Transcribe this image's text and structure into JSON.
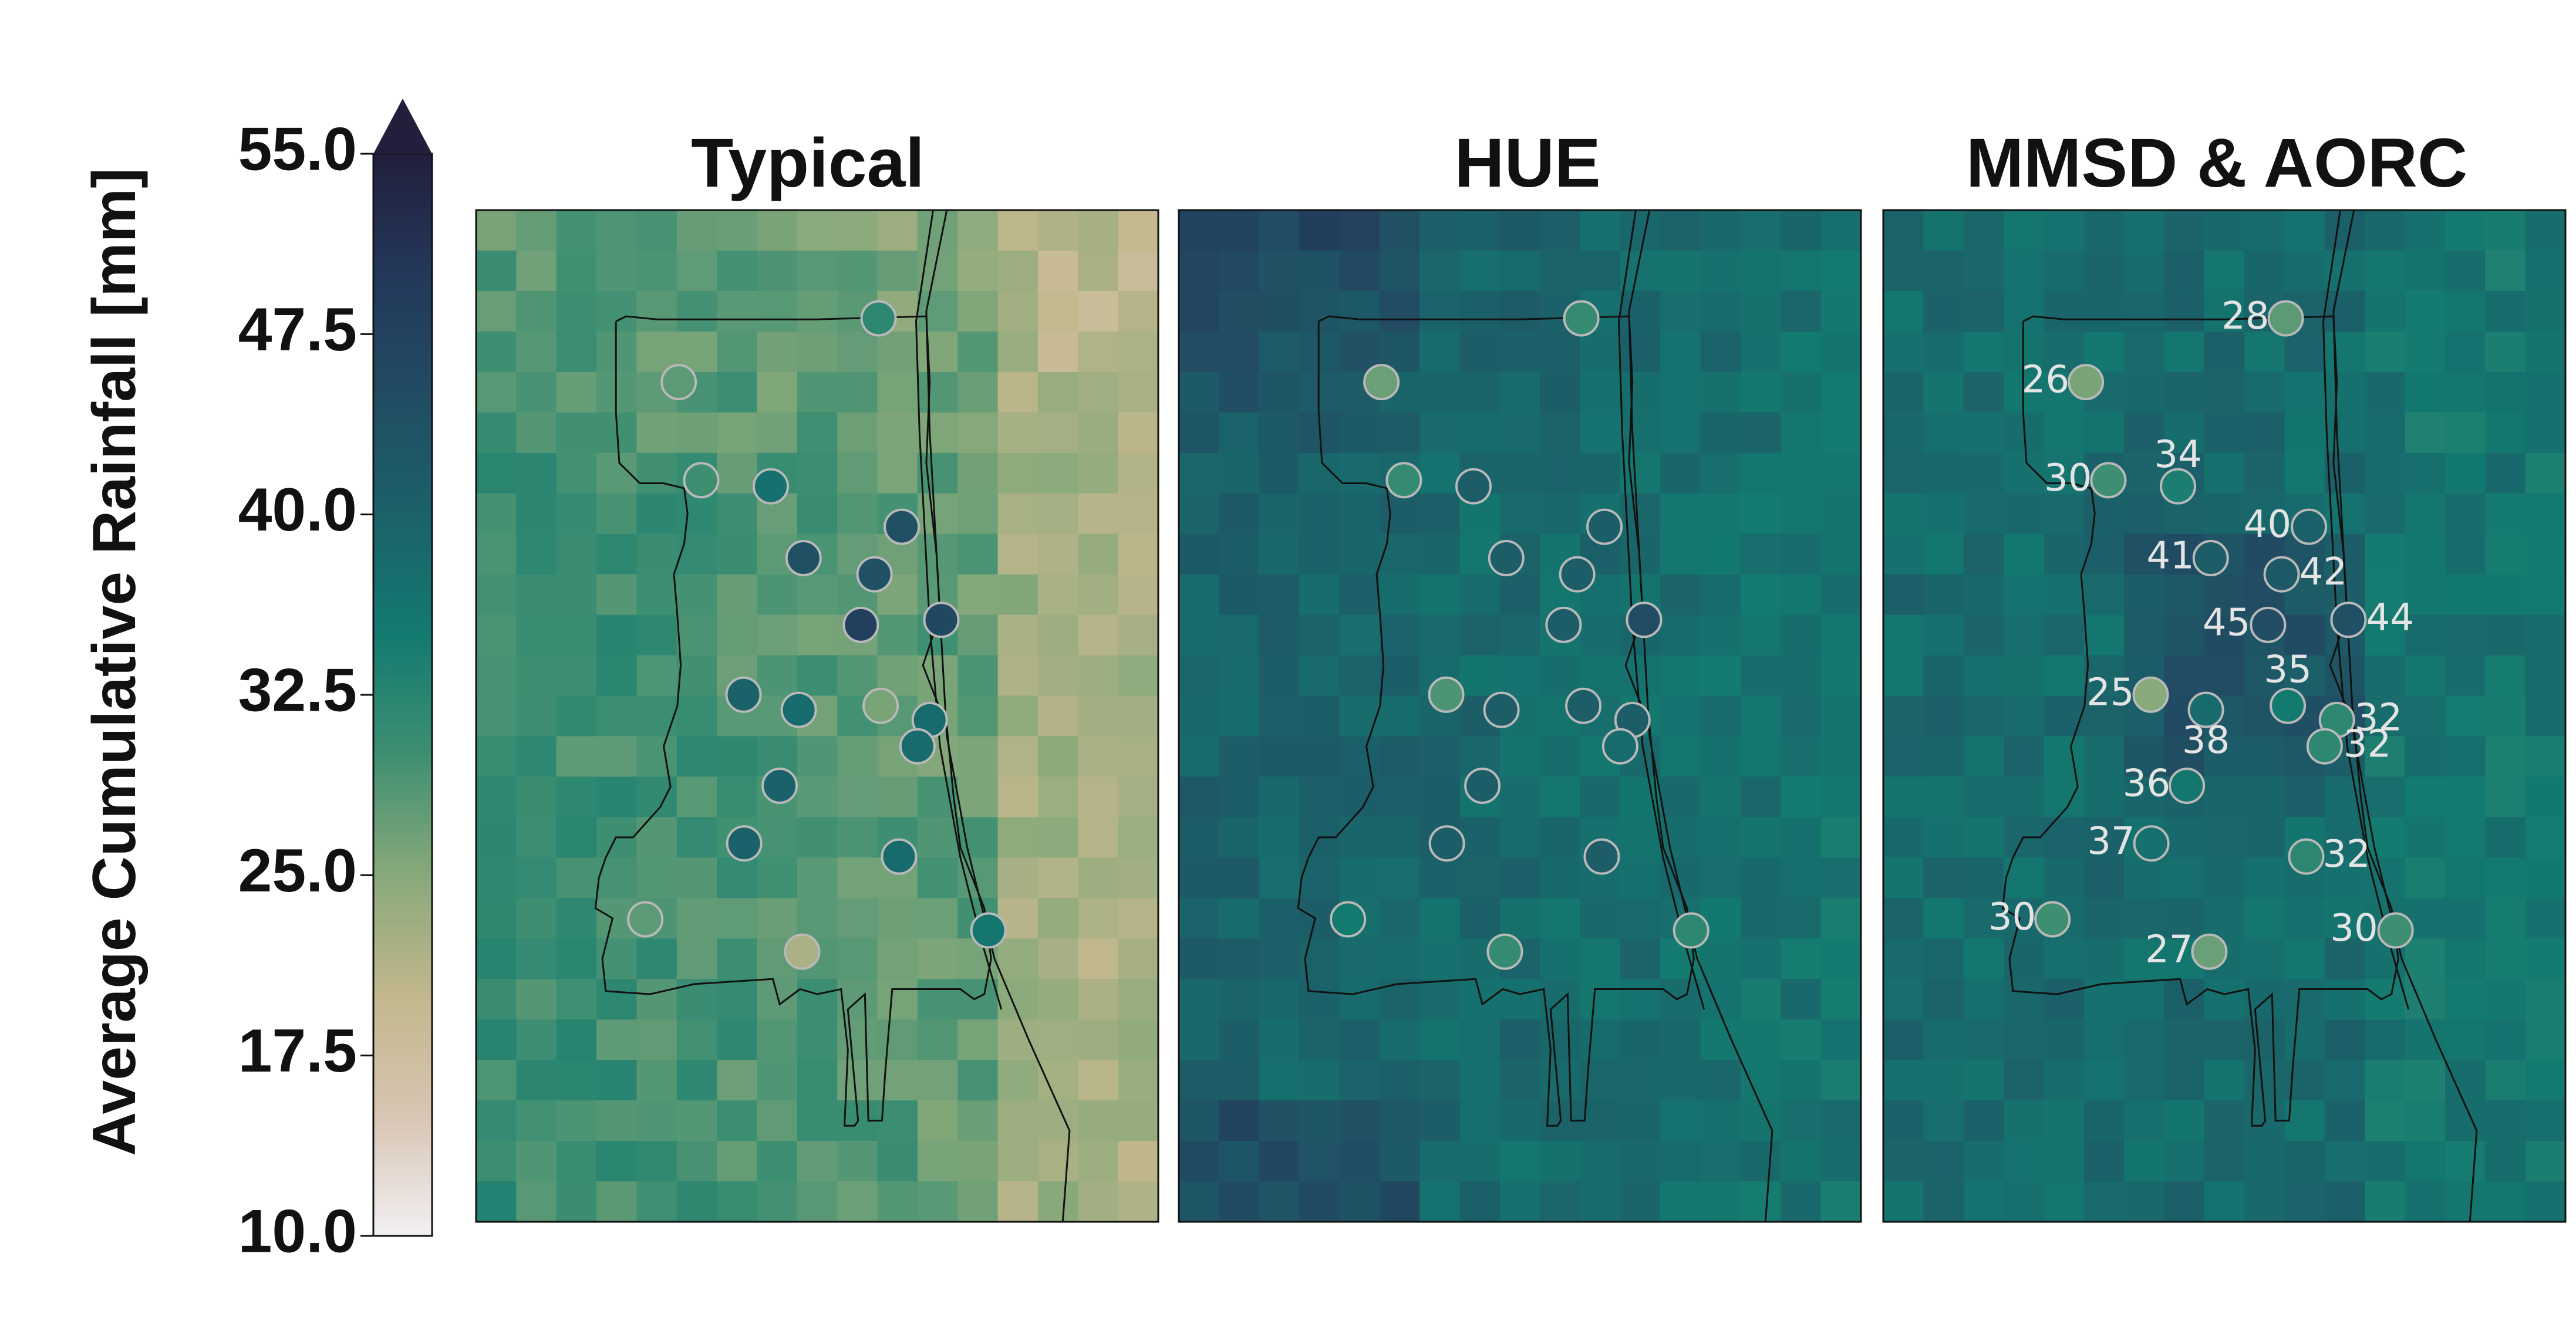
{
  "chart_data": {
    "type": "heatmap",
    "colorbar": {
      "label": "Average Cumulative Rainfall  [mm]",
      "min": 10.0,
      "max": 55.0,
      "extend": "max",
      "ticks": [
        "10.0",
        "17.5",
        "25.0",
        "32.5",
        "40.0",
        "47.5",
        "55.0"
      ],
      "colormap": [
        "#f2f0f3",
        "#d8c5b3",
        "#c2b78c",
        "#88a97a",
        "#3e8f72",
        "#137a70",
        "#1b6169",
        "#214c63",
        "#23385a",
        "#221f3d"
      ]
    },
    "panels": [
      {
        "title": "Typical",
        "field_base": 31,
        "show_labels": false,
        "stations": [
          {
            "id": "s01",
            "value": 32
          },
          {
            "id": "s02",
            "value": 28
          },
          {
            "id": "s03",
            "value": 30
          },
          {
            "id": "s04",
            "value": 37
          },
          {
            "id": "s05",
            "value": 44
          },
          {
            "id": "s06",
            "value": 44
          },
          {
            "id": "s07",
            "value": 44
          },
          {
            "id": "s08",
            "value": 48
          },
          {
            "id": "s09",
            "value": 46
          },
          {
            "id": "s10",
            "value": 26
          },
          {
            "id": "s11",
            "value": 40
          },
          {
            "id": "s12",
            "value": 38
          },
          {
            "id": "s13",
            "value": 38
          },
          {
            "id": "s14",
            "value": 38
          },
          {
            "id": "s15",
            "value": 40
          },
          {
            "id": "s16",
            "value": 40
          },
          {
            "id": "s17",
            "value": 38
          },
          {
            "id": "s18",
            "value": 28
          },
          {
            "id": "s19",
            "value": 22
          },
          {
            "id": "s20",
            "value": 36
          }
        ]
      },
      {
        "title": "HUE",
        "field_base": 40,
        "show_labels": false,
        "stations": [
          {
            "id": "s01",
            "value": 31
          },
          {
            "id": "s02",
            "value": 27
          },
          {
            "id": "s03",
            "value": 31
          },
          {
            "id": "s04",
            "value": 41
          },
          {
            "id": "s05",
            "value": 41
          },
          {
            "id": "s06",
            "value": 41
          },
          {
            "id": "s07",
            "value": 41
          },
          {
            "id": "s08",
            "value": 41
          },
          {
            "id": "s09",
            "value": 45
          },
          {
            "id": "s10",
            "value": 41
          },
          {
            "id": "s11",
            "value": 29
          },
          {
            "id": "s12",
            "value": 41
          },
          {
            "id": "s13",
            "value": 41
          },
          {
            "id": "s14",
            "value": 38
          },
          {
            "id": "s15",
            "value": 41
          },
          {
            "id": "s16",
            "value": 41
          },
          {
            "id": "s17",
            "value": 41
          },
          {
            "id": "s18",
            "value": 35
          },
          {
            "id": "s19",
            "value": 31
          },
          {
            "id": "s20",
            "value": 32
          }
        ]
      },
      {
        "title": "MMSD & AORC",
        "field_base": 39,
        "show_labels": true,
        "stations": [
          {
            "id": "s01",
            "value": 28,
            "label": "28"
          },
          {
            "id": "s02",
            "value": 26,
            "label": "26"
          },
          {
            "id": "s03",
            "value": 30,
            "label": "30"
          },
          {
            "id": "s04",
            "value": 34,
            "label": "34"
          },
          {
            "id": "s05",
            "value": 40,
            "label": "40"
          },
          {
            "id": "s06",
            "value": 41,
            "label": "41"
          },
          {
            "id": "s07",
            "value": 42,
            "label": "42"
          },
          {
            "id": "s08",
            "value": 45,
            "label": "45"
          },
          {
            "id": "s09",
            "value": 44,
            "label": "44"
          },
          {
            "id": "s10",
            "value": 35,
            "label": "35"
          },
          {
            "id": "s11",
            "value": 25,
            "label": "25"
          },
          {
            "id": "s12",
            "value": 38,
            "label": "38"
          },
          {
            "id": "s13",
            "value": 32,
            "label": "32"
          },
          {
            "id": "s14",
            "value": 32,
            "label": "32"
          },
          {
            "id": "s15",
            "value": 36,
            "label": "36"
          },
          {
            "id": "s16",
            "value": 37,
            "label": "37"
          },
          {
            "id": "s17",
            "value": 32,
            "label": "32"
          },
          {
            "id": "s18",
            "value": 30,
            "label": "30"
          },
          {
            "id": "s19",
            "value": 27,
            "label": "27"
          },
          {
            "id": "s20",
            "value": 30,
            "label": "30"
          }
        ]
      }
    ]
  }
}
